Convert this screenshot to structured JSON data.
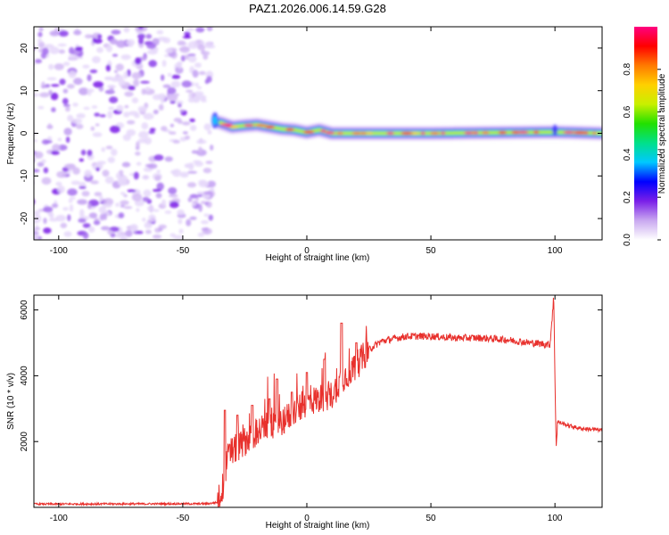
{
  "title": "PAZ1.2026.006.14.59.G28",
  "chart_data": [
    {
      "type": "heatmap",
      "name": "spectrogram",
      "xlabel": "Height of straight line (km)",
      "ylabel": "Frequency (Hz)",
      "xlim": [
        -110,
        119
      ],
      "ylim": [
        -25,
        25
      ],
      "xticks": [
        -100,
        -50,
        0,
        50,
        100
      ],
      "yticks": [
        -20,
        -10,
        0,
        10,
        20
      ],
      "noise_region_x": [
        -110,
        -38
      ],
      "tone_region_x": [
        -38,
        119
      ],
      "tone_frequency_hz": [
        {
          "x": -35,
          "y": 2.5
        },
        {
          "x": -30,
          "y": 1.5
        },
        {
          "x": -25,
          "y": 1.8
        },
        {
          "x": -20,
          "y": 2.0
        },
        {
          "x": -15,
          "y": 1.5
        },
        {
          "x": -10,
          "y": 1.0
        },
        {
          "x": -5,
          "y": 0.8
        },
        {
          "x": 0,
          "y": 0.2
        },
        {
          "x": 5,
          "y": 0.8
        },
        {
          "x": 10,
          "y": 0.0
        },
        {
          "x": 20,
          "y": 0.0
        },
        {
          "x": 50,
          "y": 0.0
        },
        {
          "x": 100,
          "y": 0.3
        },
        {
          "x": 119,
          "y": 0.0
        }
      ],
      "colorbar": {
        "label": "Normalized spectral amplitude",
        "range": [
          0.0,
          1.0
        ],
        "ticks": [
          "0.0",
          "0.2",
          "0.4",
          "0.6",
          "0.8"
        ],
        "tick_values": [
          0.0,
          0.2,
          0.4,
          0.6,
          0.8
        ],
        "colors": [
          "#ffffff",
          "#c9a8f0",
          "#7a1fe8",
          "#0000ff",
          "#00c8ff",
          "#00e08a",
          "#22e000",
          "#c8f000",
          "#ffd000",
          "#ff7a00",
          "#ff0000",
          "#ff0080"
        ]
      }
    },
    {
      "type": "line",
      "name": "snr",
      "xlabel": "Height of straight line (km)",
      "ylabel": "SNR (10 * v/v)",
      "xlim": [
        -110,
        119
      ],
      "ylim": [
        0,
        6450
      ],
      "xticks": [
        -100,
        -50,
        0,
        50,
        100
      ],
      "yticks": [
        2000,
        4000,
        6000
      ],
      "color": "#e8302c",
      "series_points": [
        {
          "x": -110,
          "y": 100
        },
        {
          "x": -40,
          "y": 110
        },
        {
          "x": -36,
          "y": 150
        },
        {
          "x": -34,
          "y": 600
        },
        {
          "x": -32,
          "y": 1500
        },
        {
          "x": -30,
          "y": 1700
        },
        {
          "x": -25,
          "y": 2000
        },
        {
          "x": -20,
          "y": 2300
        },
        {
          "x": -15,
          "y": 2500
        },
        {
          "x": -10,
          "y": 2600
        },
        {
          "x": -5,
          "y": 2900
        },
        {
          "x": 0,
          "y": 3200
        },
        {
          "x": 5,
          "y": 3300
        },
        {
          "x": 10,
          "y": 3400
        },
        {
          "x": 14,
          "y": 3900
        },
        {
          "x": 20,
          "y": 4300
        },
        {
          "x": 25,
          "y": 4800
        },
        {
          "x": 30,
          "y": 5050
        },
        {
          "x": 40,
          "y": 5200
        },
        {
          "x": 50,
          "y": 5200
        },
        {
          "x": 60,
          "y": 5150
        },
        {
          "x": 70,
          "y": 5150
        },
        {
          "x": 80,
          "y": 5100
        },
        {
          "x": 90,
          "y": 5000
        },
        {
          "x": 98,
          "y": 4950
        },
        {
          "x": 99.5,
          "y": 6400
        },
        {
          "x": 100,
          "y": 4000
        },
        {
          "x": 100.5,
          "y": 1800
        },
        {
          "x": 101,
          "y": 2600
        },
        {
          "x": 105,
          "y": 2500
        },
        {
          "x": 110,
          "y": 2400
        },
        {
          "x": 119,
          "y": 2350
        }
      ],
      "spikes": [
        {
          "x": -33,
          "y": 2950
        },
        {
          "x": -28,
          "y": 2800
        },
        {
          "x": -22,
          "y": 3100
        },
        {
          "x": -15,
          "y": 3300
        },
        {
          "x": -12,
          "y": 3900
        },
        {
          "x": -6,
          "y": 3500
        },
        {
          "x": 0,
          "y": 4100
        },
        {
          "x": 7,
          "y": 4500
        },
        {
          "x": 14,
          "y": 5600
        },
        {
          "x": 20,
          "y": 5000
        }
      ]
    }
  ]
}
